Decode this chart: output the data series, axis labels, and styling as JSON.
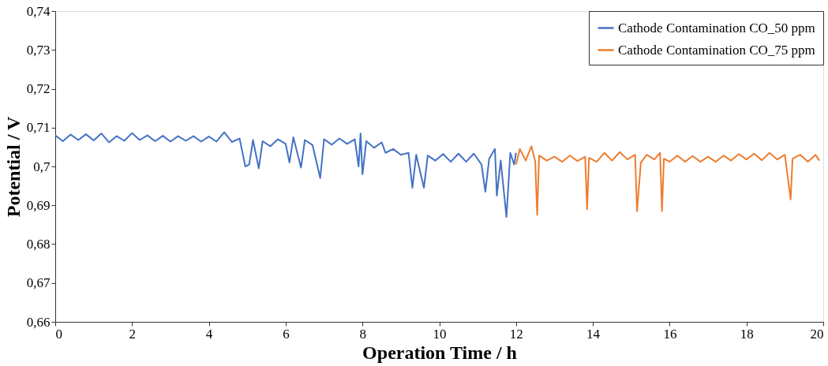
{
  "chart_data": {
    "type": "line",
    "xlabel": "Operation Time / h",
    "ylabel": "Potential / V",
    "xlim": [
      0,
      20
    ],
    "xticks": [
      0,
      2,
      4,
      6,
      8,
      10,
      12,
      14,
      16,
      18,
      20
    ],
    "ylim": [
      0.66,
      0.74
    ],
    "yticks": [
      {
        "value": 0.66,
        "label": "0,66"
      },
      {
        "value": 0.67,
        "label": "0,67"
      },
      {
        "value": 0.68,
        "label": "0,68"
      },
      {
        "value": 0.69,
        "label": "0,69"
      },
      {
        "value": 0.7,
        "label": "0,7"
      },
      {
        "value": 0.71,
        "label": "0,71"
      },
      {
        "value": 0.72,
        "label": "0,72"
      },
      {
        "value": 0.73,
        "label": "0,73"
      },
      {
        "value": 0.74,
        "label": "0,74"
      }
    ],
    "grid": false,
    "legend": "top right",
    "marker": "none",
    "line_style": "solid",
    "series": [
      {
        "name": "Cathode Contamination CO_50 ppm",
        "color": "#4472c4",
        "x": [
          0,
          0.2,
          0.4,
          0.6,
          0.8,
          1.0,
          1.2,
          1.4,
          1.6,
          1.8,
          2.0,
          2.2,
          2.4,
          2.6,
          2.8,
          3.0,
          3.2,
          3.4,
          3.6,
          3.8,
          4.0,
          4.2,
          4.4,
          4.6,
          4.8,
          4.95,
          5.05,
          5.15,
          5.3,
          5.4,
          5.6,
          5.8,
          6.0,
          6.1,
          6.2,
          6.4,
          6.5,
          6.7,
          6.9,
          7.0,
          7.2,
          7.4,
          7.6,
          7.8,
          7.9,
          7.95,
          8.0,
          8.1,
          8.3,
          8.5,
          8.6,
          8.8,
          9.0,
          9.2,
          9.3,
          9.4,
          9.6,
          9.7,
          9.9,
          10.1,
          10.3,
          10.5,
          10.7,
          10.9,
          11.1,
          11.2,
          11.3,
          11.45,
          11.5,
          11.6,
          11.75,
          11.85,
          11.95,
          12.0
        ],
        "values": [
          0.708,
          0.7065,
          0.7082,
          0.7068,
          0.7083,
          0.7067,
          0.7085,
          0.7062,
          0.7078,
          0.7066,
          0.7086,
          0.7068,
          0.708,
          0.7065,
          0.7079,
          0.7064,
          0.7078,
          0.7066,
          0.7078,
          0.7064,
          0.7077,
          0.7064,
          0.7088,
          0.7063,
          0.7072,
          0.7,
          0.7005,
          0.7068,
          0.6995,
          0.7065,
          0.7052,
          0.707,
          0.7058,
          0.701,
          0.7075,
          0.6997,
          0.7068,
          0.7055,
          0.697,
          0.707,
          0.7056,
          0.7072,
          0.7058,
          0.707,
          0.7,
          0.7085,
          0.698,
          0.7065,
          0.7048,
          0.7062,
          0.7035,
          0.7045,
          0.703,
          0.7035,
          0.6945,
          0.703,
          0.6945,
          0.7028,
          0.7015,
          0.7032,
          0.7012,
          0.7033,
          0.7012,
          0.7033,
          0.7005,
          0.6935,
          0.702,
          0.7045,
          0.6925,
          0.7015,
          0.687,
          0.7035,
          0.7005,
          0.7035
        ]
      },
      {
        "name": "Cathode Contamination CO_75 ppm",
        "color": "#ed7d31",
        "x": [
          12.0,
          12.1,
          12.25,
          12.4,
          12.5,
          12.55,
          12.6,
          12.8,
          13.0,
          13.2,
          13.4,
          13.6,
          13.8,
          13.85,
          13.9,
          14.1,
          14.3,
          14.5,
          14.7,
          14.9,
          15.1,
          15.15,
          15.25,
          15.4,
          15.6,
          15.75,
          15.8,
          15.85,
          16.0,
          16.2,
          16.4,
          16.6,
          16.8,
          17.0,
          17.2,
          17.4,
          17.6,
          17.8,
          18.0,
          18.2,
          18.4,
          18.6,
          18.8,
          19.0,
          19.15,
          19.2,
          19.4,
          19.6,
          19.8,
          19.9
        ],
        "values": [
          0.7005,
          0.7045,
          0.7015,
          0.7052,
          0.7012,
          0.6875,
          0.7028,
          0.7015,
          0.7025,
          0.7012,
          0.7028,
          0.7014,
          0.7025,
          0.689,
          0.7022,
          0.7012,
          0.7035,
          0.7015,
          0.7037,
          0.7018,
          0.703,
          0.6885,
          0.701,
          0.703,
          0.7018,
          0.7035,
          0.6885,
          0.702,
          0.7012,
          0.7028,
          0.7012,
          0.7027,
          0.7012,
          0.7025,
          0.7012,
          0.7028,
          0.7015,
          0.7032,
          0.7018,
          0.7033,
          0.7016,
          0.7035,
          0.7018,
          0.703,
          0.6915,
          0.702,
          0.703,
          0.7012,
          0.703,
          0.7015
        ]
      }
    ]
  }
}
